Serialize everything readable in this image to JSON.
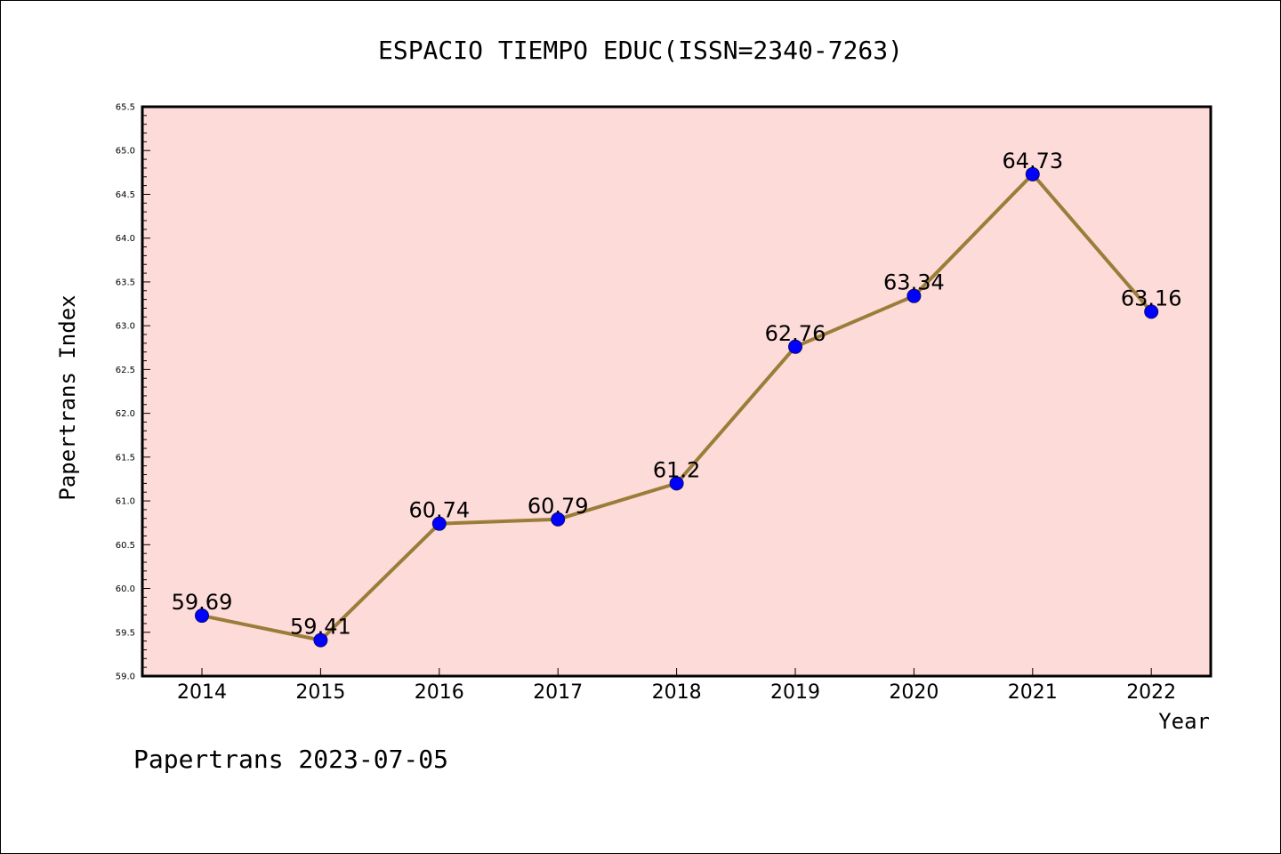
{
  "colors": {
    "plot_background": "#fddbd9",
    "line": "#9b7d3a",
    "marker_fill": "#0000ff",
    "marker_stroke": "#0a0a6e",
    "axis": "#000000"
  },
  "footer_text": "Papertrans 2023-07-05",
  "chart_data": {
    "type": "line",
    "title": "ESPACIO TIEMPO EDUC(ISSN=2340-7263)",
    "xlabel": "Year",
    "ylabel": "Papertrans Index",
    "categories": [
      "2014",
      "2015",
      "2016",
      "2017",
      "2018",
      "2019",
      "2020",
      "2021",
      "2022"
    ],
    "series": [
      {
        "values": [
          59.69,
          59.41,
          60.74,
          60.79,
          61.2,
          62.76,
          63.34,
          64.73,
          63.16
        ],
        "labels": [
          "59.69",
          "59.41",
          "60.74",
          "60.79",
          "61.2",
          "62.76",
          "63.34",
          "64.73",
          "63.16"
        ]
      }
    ],
    "ylim": [
      59.0,
      65.5
    ],
    "yticks": [
      "59.0",
      "59.5",
      "60.0",
      "60.5",
      "61.0",
      "61.5",
      "62.0",
      "62.5",
      "63.0",
      "63.5",
      "64.0",
      "64.5",
      "65.0",
      "65.5"
    ],
    "grid": false,
    "legend": "none",
    "marker": "circle"
  }
}
